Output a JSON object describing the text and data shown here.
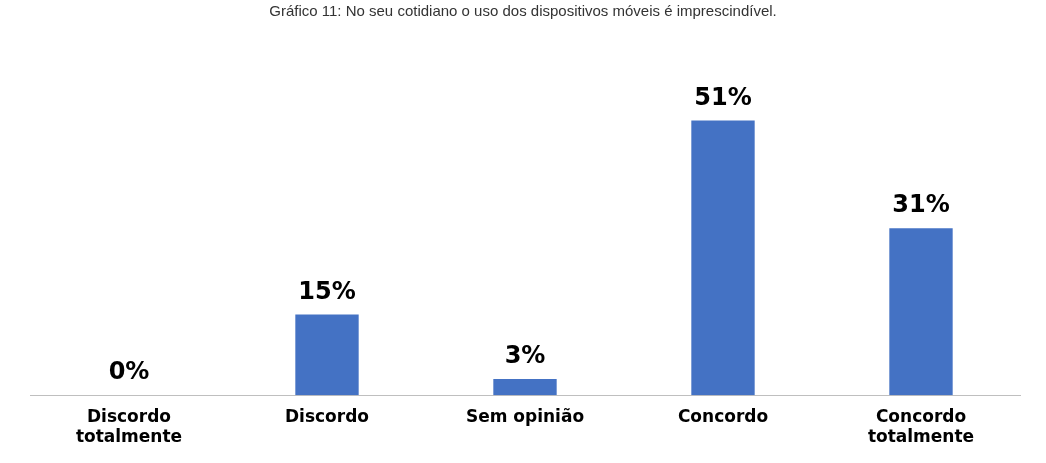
{
  "chart_data": {
    "type": "bar",
    "title": "Gráfico 11: No seu cotidiano o uso dos dispositivos móveis é imprescindível.",
    "categories": [
      "Discordo\ntotalmente",
      "Discordo",
      "Sem opinião",
      "Concordo",
      "Concordo\ntotalmente"
    ],
    "values": [
      0,
      15,
      3,
      51,
      31
    ],
    "value_labels": [
      "0%",
      "15%",
      "3%",
      "51%",
      "31%"
    ],
    "color": "#4472c4",
    "grid": false,
    "legend": false
  }
}
